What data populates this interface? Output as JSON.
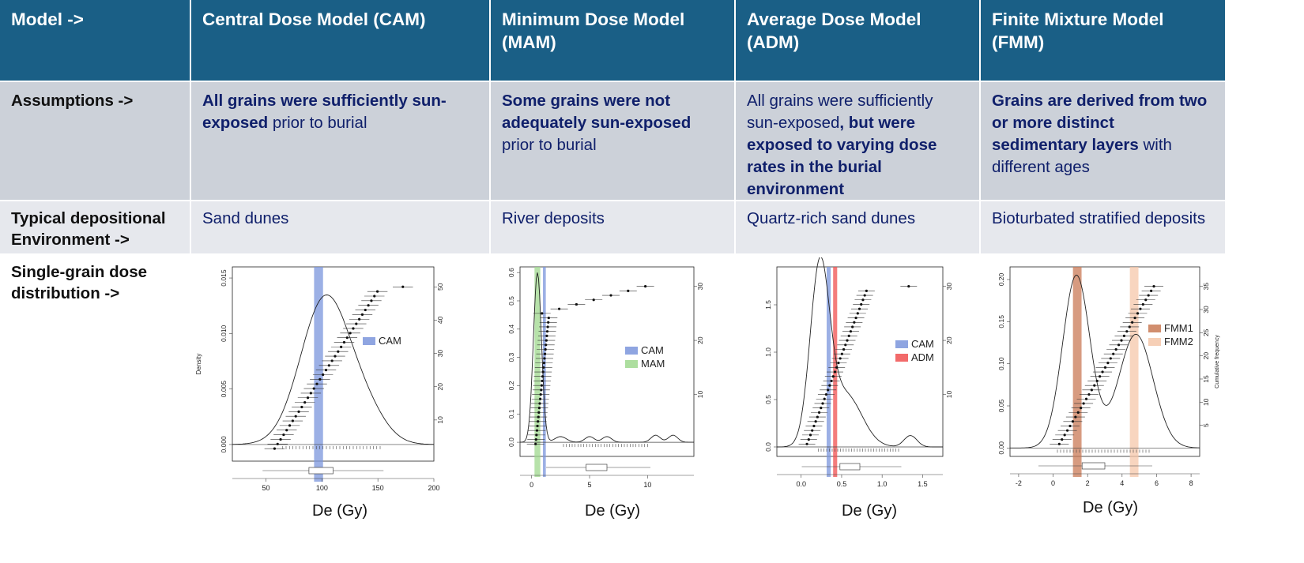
{
  "header": {
    "row_label": "Model ->",
    "cam": "Central Dose Model (CAM)",
    "mam": "Minimum Dose Model (MAM)",
    "adm": "Average Dose Model (ADM)",
    "fmm": "Finite Mixture Model (FMM)"
  },
  "assumptions": {
    "row_label": "Assumptions ->",
    "cam_bold": "All grains were sufficiently sun-exposed",
    "cam_rest": " prior to burial",
    "mam_bold": "Some grains were not adequately sun-exposed",
    "mam_rest": " prior to burial",
    "adm_plain": "All grains were sufficiently sun-exposed",
    "adm_bold": ", but were exposed to varying dose rates in the burial environment",
    "fmm_bold": "Grains are derived from two or more distinct sedimentary layers",
    "fmm_rest": " with different ages"
  },
  "environment": {
    "row_label": "Typical depositional Environment ->",
    "cam": "Sand dunes",
    "mam": "River deposits",
    "adm": "Quartz-rich sand dunes",
    "fmm": "Bioturbated stratified deposits"
  },
  "distribution": {
    "row_label": "Single-grain dose distribution ->",
    "xlabel": "De (Gy)"
  },
  "colors": {
    "header_bg": "#1a5f86",
    "row2_bg": "#ccd1d9",
    "row3_bg": "#e6e8ed",
    "text_navy": "#10206b",
    "cam_band": "#7b95dc",
    "mam_band": "#9fd88e",
    "adm_band": "#f05050",
    "fmm1_band": "#c97a55",
    "fmm2_band": "#f5c7a9"
  },
  "chart_data": [
    {
      "type": "scatter",
      "name_key": "cam",
      "x_ticks": [
        "50",
        "100",
        "150",
        "200"
      ],
      "y_ticks": [
        "0.000",
        "0.005",
        "0.010",
        "0.015"
      ],
      "y2_ticks": [
        "10",
        "20",
        "30",
        "40",
        "50"
      ],
      "ylabel": "Density",
      "xlim": [
        20,
        200
      ],
      "ylim": [
        -0.0015,
        0.016
      ],
      "legend": [
        "CAM"
      ],
      "bands": [
        {
          "label": "CAM",
          "center": 97,
          "width": 8
        }
      ]
    },
    {
      "type": "scatter",
      "name_key": "mam",
      "x_ticks": [
        "0",
        "5",
        "10"
      ],
      "y_ticks": [
        "0.0",
        "0.1",
        "0.2",
        "0.3",
        "0.4",
        "0.5",
        "0.6"
      ],
      "y2_ticks": [
        "10",
        "20",
        "30"
      ],
      "xlim": [
        -1,
        14
      ],
      "ylim": [
        -0.05,
        0.62
      ],
      "legend": [
        "CAM",
        "MAM"
      ],
      "bands": [
        {
          "label": "MAM",
          "center": 0.5,
          "width": 0.5
        },
        {
          "label": "CAM",
          "center": 1.1,
          "width": 0.25
        }
      ]
    },
    {
      "type": "scatter",
      "name_key": "adm",
      "x_ticks": [
        "0.0",
        "0.5",
        "1.0",
        "1.5"
      ],
      "y_ticks": [
        "0.0",
        "0.5",
        "1.0",
        "1.5"
      ],
      "y2_ticks": [
        "10",
        "20",
        "30"
      ],
      "xlim": [
        -0.3,
        1.75
      ],
      "ylim": [
        -0.1,
        1.9
      ],
      "legend": [
        "CAM",
        "ADM"
      ],
      "bands": [
        {
          "label": "CAM",
          "center": 0.34,
          "width": 0.05
        },
        {
          "label": "ADM",
          "center": 0.42,
          "width": 0.05
        }
      ]
    },
    {
      "type": "scatter",
      "name_key": "fmm",
      "x_ticks": [
        "-2",
        "0",
        "2",
        "4",
        "6",
        "8"
      ],
      "y_ticks": [
        "0.00",
        "0.05",
        "0.10",
        "0.15",
        "0.20"
      ],
      "y2_ticks": [
        "5",
        "10",
        "15",
        "20",
        "25",
        "30",
        "35"
      ],
      "ylabel2": "Cumulative frequency",
      "xlim": [
        -2.5,
        8.5
      ],
      "ylim": [
        -0.01,
        0.215
      ],
      "legend": [
        "FMM1",
        "FMM2"
      ],
      "bands": [
        {
          "label": "FMM1",
          "center": 1.4,
          "width": 0.5
        },
        {
          "label": "FMM2",
          "center": 4.7,
          "width": 0.5
        }
      ]
    }
  ]
}
